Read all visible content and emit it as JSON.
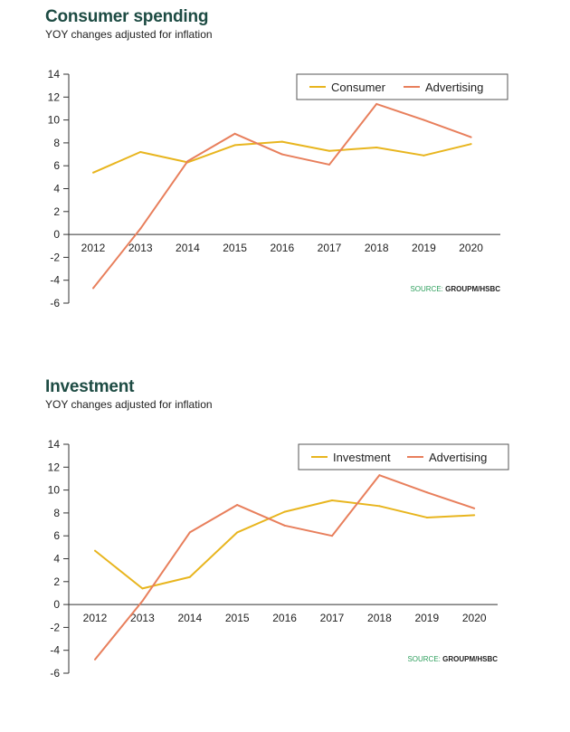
{
  "colors": {
    "series_a": "#e8b51e",
    "series_b": "#e87f5c",
    "axis": "#333333",
    "title": "#1d4b43",
    "source": "#2e9f5d"
  },
  "chart_data": [
    {
      "type": "line",
      "title": "Consumer spending",
      "subtitle": "YOY changes adjusted for inflation",
      "x": [
        "2012",
        "2013",
        "2014",
        "2015",
        "2016",
        "2017",
        "2018",
        "2019",
        "2020"
      ],
      "series": [
        {
          "name": "Consumer",
          "values": [
            5.4,
            7.2,
            6.3,
            7.8,
            8.1,
            7.3,
            7.6,
            6.9,
            7.9
          ]
        },
        {
          "name": "Advertising",
          "values": [
            -4.7,
            0.5,
            6.4,
            8.8,
            7.0,
            6.1,
            11.4,
            10.0,
            8.5
          ]
        }
      ],
      "yticks": [
        14,
        12,
        10,
        8,
        6,
        4,
        2,
        0,
        -2,
        -4,
        -6
      ],
      "ylim": [
        -6,
        14
      ],
      "grid": false,
      "legend_position": "top-right",
      "source_label": "SOURCE: ",
      "source_name": "GROUPM/HSBC"
    },
    {
      "type": "line",
      "title": "Investment",
      "subtitle": "YOY changes adjusted for inflation",
      "x": [
        "2012",
        "2013",
        "2014",
        "2015",
        "2016",
        "2017",
        "2018",
        "2019",
        "2020"
      ],
      "series": [
        {
          "name": "Investment",
          "values": [
            4.7,
            1.4,
            2.4,
            6.3,
            8.1,
            9.1,
            8.6,
            7.6,
            7.8
          ]
        },
        {
          "name": "Advertising",
          "values": [
            -4.8,
            0.3,
            6.3,
            8.7,
            6.9,
            6.0,
            11.3,
            9.8,
            8.4
          ]
        }
      ],
      "yticks": [
        14,
        12,
        10,
        8,
        6,
        4,
        2,
        0,
        -2,
        -4,
        -6
      ],
      "ylim": [
        -6,
        14
      ],
      "grid": false,
      "legend_position": "top-right",
      "source_label": "SOURCE: ",
      "source_name": "GROUPM/HSBC"
    }
  ]
}
